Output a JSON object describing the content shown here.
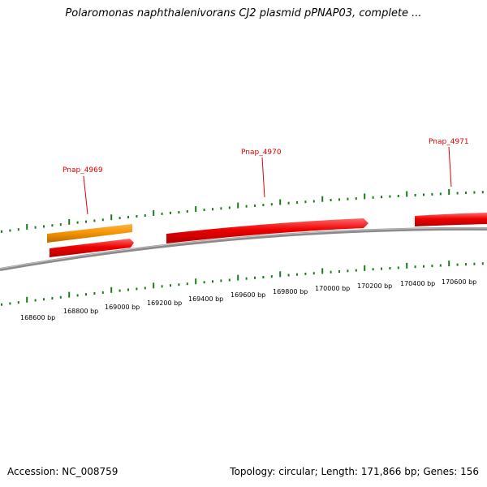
{
  "title": "Polaromonas naphthalenivorans CJ2 plasmid pPNAP03, complete ...",
  "footer": {
    "accession": "Accession: NC_008759",
    "summary": "Topology: circular; Length: 171,866 bp; Genes: 156"
  },
  "colors": {
    "backbone": "#8a8a8a",
    "gene": "#ee0000",
    "gene_highlight": "#f39200",
    "tick": "#1a7a1a",
    "label": "#e00000"
  },
  "gene_labels": [
    "Pnap_4969",
    "Pnap_4970",
    "Pnap_4971"
  ],
  "scale_labels": [
    "168600 bp",
    "168800 bp",
    "169000 bp",
    "169200 bp",
    "169400 bp",
    "169600 bp",
    "169800 bp",
    "170000 bp",
    "170200 bp",
    "170400 bp",
    "170600 bp"
  ]
}
